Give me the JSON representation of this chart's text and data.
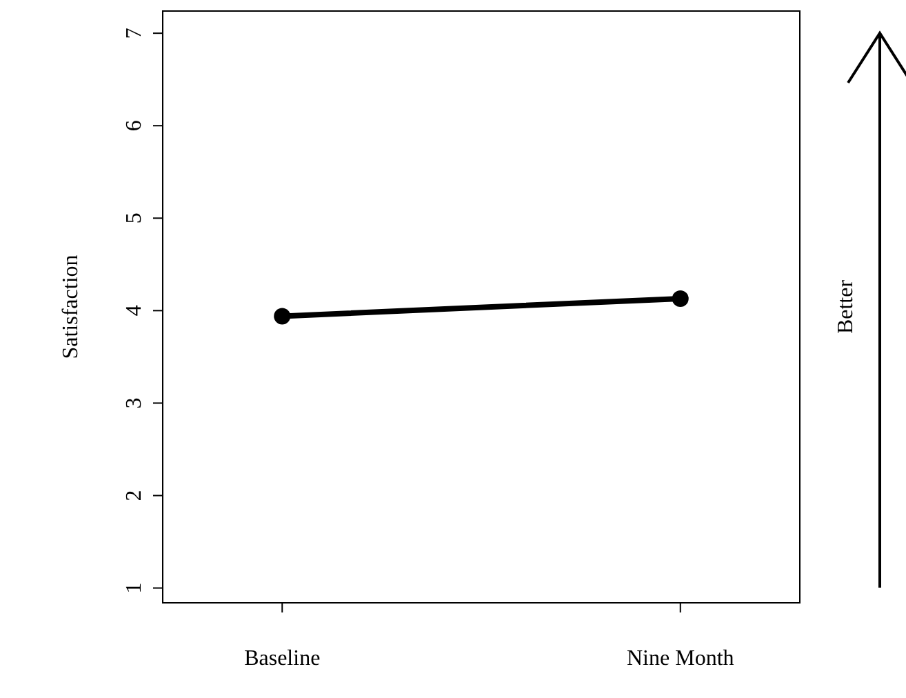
{
  "chart_data": {
    "type": "line",
    "ylabel": "Satisfaction",
    "categories": [
      "Baseline",
      "Nine Month"
    ],
    "series": [
      {
        "color": "#000000",
        "values": [
          3.94,
          4.13
        ]
      }
    ],
    "ylim": [
      0.84,
      7.24
    ],
    "yticks": [
      1,
      2,
      3,
      4,
      5,
      6,
      7
    ],
    "marker": "circle",
    "line_style": "solid",
    "grid": false,
    "annotations": [
      "Better"
    ]
  }
}
